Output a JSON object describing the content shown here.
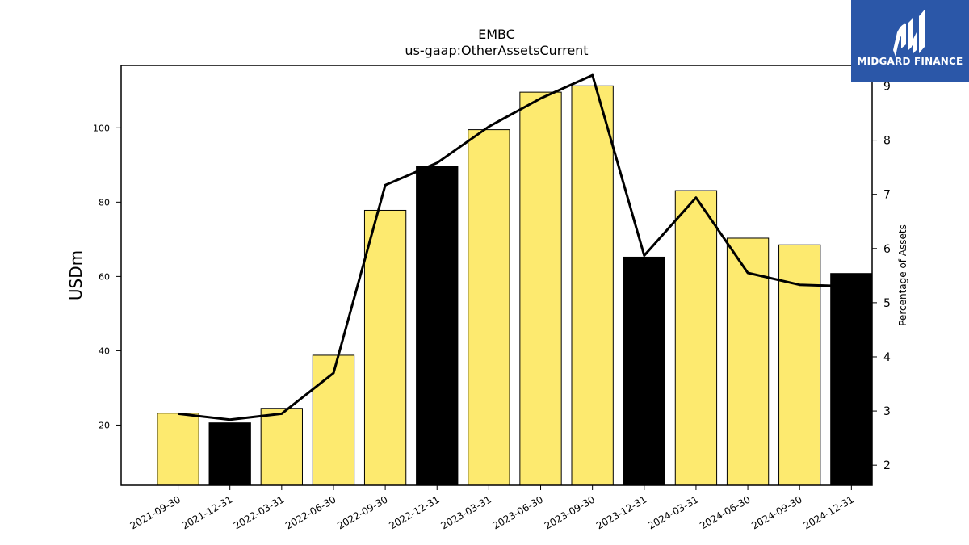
{
  "chart_data": {
    "type": "bar",
    "title": "EMBC",
    "subtitle": "us-gaap:OtherAssetsCurrent",
    "ylabel": "USDm",
    "y2label": "Percentage of Assets",
    "categories": [
      "2021-09-30",
      "2021-12-31",
      "2022-03-31",
      "2022-06-30",
      "2022-09-30",
      "2022-12-31",
      "2023-03-31",
      "2023-06-30",
      "2023-09-30",
      "2023-12-31",
      "2024-03-31",
      "2024-06-30",
      "2024-09-30",
      "2024-12-31"
    ],
    "series": [
      {
        "values": [
          23.2,
          20.6,
          24.5,
          38.8,
          77.8,
          89.7,
          99.5,
          109.6,
          111.3,
          65.2,
          83.1,
          70.3,
          68.5,
          60.8
        ],
        "axis": "left",
        "kind": "bar"
      },
      {
        "values": [
          2.95,
          2.84,
          2.95,
          3.7,
          7.17,
          7.58,
          8.25,
          8.77,
          9.2,
          5.87,
          6.94,
          5.55,
          5.33,
          5.3
        ],
        "axis": "right",
        "kind": "line"
      }
    ],
    "bar_colors": [
      "#fdea6f",
      "#000000",
      "#fdea6f",
      "#fdea6f",
      "#fdea6f",
      "#000000",
      "#fdea6f",
      "#fdea6f",
      "#fdea6f",
      "#000000",
      "#fdea6f",
      "#fdea6f",
      "#fdea6f",
      "#000000"
    ],
    "line_color": "#000000",
    "ylim": [
      3.8,
      116.8
    ],
    "yticks": [
      20,
      40,
      60,
      80,
      100
    ],
    "y2lim": [
      1.63,
      9.38
    ],
    "y2ticks": [
      2,
      3,
      4,
      5,
      6,
      7,
      8,
      9
    ],
    "grid": false,
    "legend": "none"
  },
  "logo": {
    "text": "MIDGARD FINANCE",
    "background": "#2b57a8"
  }
}
